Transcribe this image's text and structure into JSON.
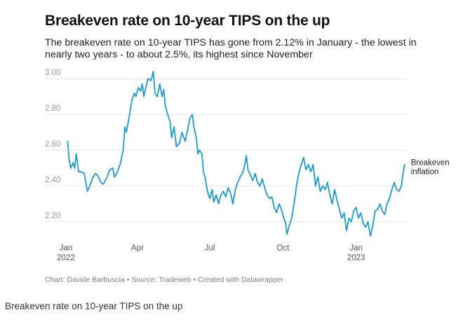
{
  "title": "Breakeven rate on 10-year TIPS on the up",
  "subtitle": "The breakeven rate on 10-year TIPS has gone from 2.12% in January - the lowest in nearly two years - to about 2.5%, its highest since November",
  "footer": "Chart: Davide Barbuscia • Source: Tradeweb • Created with Datawrapper",
  "caption": "Breakeven rate on 10-year TIPS on the up",
  "chart_data": {
    "type": "line",
    "title": "Breakeven rate on 10-year TIPS on the up",
    "ylim": [
      2.13,
      3.04
    ],
    "yticks": [
      "2.20",
      "2.40",
      "2.60",
      "2.80",
      "3.00"
    ],
    "xlim": [
      "2022-01-01",
      "2023-03-05"
    ],
    "xticks": [
      {
        "date": "2022-01-01",
        "label": "Jan",
        "sub": "2022"
      },
      {
        "date": "2022-04-01",
        "label": "Apr",
        "sub": ""
      },
      {
        "date": "2022-07-01",
        "label": "Jul",
        "sub": ""
      },
      {
        "date": "2022-10-01",
        "label": "Oct",
        "sub": ""
      },
      {
        "date": "2023-01-01",
        "label": "Jan",
        "sub": "2023"
      }
    ],
    "grid": true,
    "color": "#1f9bc9",
    "series": [
      {
        "name": "Breakeven inflation",
        "points": [
          [
            "2022-01-03",
            2.65
          ],
          [
            "2022-01-05",
            2.55
          ],
          [
            "2022-01-07",
            2.5
          ],
          [
            "2022-01-10",
            2.53
          ],
          [
            "2022-01-12",
            2.5
          ],
          [
            "2022-01-14",
            2.58
          ],
          [
            "2022-01-17",
            2.48
          ],
          [
            "2022-01-20",
            2.48
          ],
          [
            "2022-01-24",
            2.47
          ],
          [
            "2022-01-26",
            2.42
          ],
          [
            "2022-01-28",
            2.37
          ],
          [
            "2022-01-31",
            2.4
          ],
          [
            "2022-02-03",
            2.44
          ],
          [
            "2022-02-07",
            2.47
          ],
          [
            "2022-02-10",
            2.46
          ],
          [
            "2022-02-14",
            2.42
          ],
          [
            "2022-02-17",
            2.41
          ],
          [
            "2022-02-22",
            2.45
          ],
          [
            "2022-02-25",
            2.49
          ],
          [
            "2022-03-01",
            2.5
          ],
          [
            "2022-03-03",
            2.45
          ],
          [
            "2022-03-06",
            2.47
          ],
          [
            "2022-03-10",
            2.52
          ],
          [
            "2022-03-14",
            2.6
          ],
          [
            "2022-03-16",
            2.73
          ],
          [
            "2022-03-18",
            2.7
          ],
          [
            "2022-03-22",
            2.8
          ],
          [
            "2022-03-25",
            2.88
          ],
          [
            "2022-03-28",
            2.92
          ],
          [
            "2022-03-30",
            2.9
          ],
          [
            "2022-04-02",
            2.95
          ],
          [
            "2022-04-05",
            2.93
          ],
          [
            "2022-04-07",
            2.97
          ],
          [
            "2022-04-09",
            2.9
          ],
          [
            "2022-04-12",
            2.96
          ],
          [
            "2022-04-14",
            3.0
          ],
          [
            "2022-04-18",
            2.99
          ],
          [
            "2022-04-21",
            3.04
          ],
          [
            "2022-04-23",
            2.92
          ],
          [
            "2022-04-26",
            2.9
          ],
          [
            "2022-04-29",
            2.97
          ],
          [
            "2022-05-02",
            2.9
          ],
          [
            "2022-05-04",
            2.94
          ],
          [
            "2022-05-06",
            2.85
          ],
          [
            "2022-05-09",
            2.8
          ],
          [
            "2022-05-12",
            2.76
          ],
          [
            "2022-05-14",
            2.67
          ],
          [
            "2022-05-17",
            2.73
          ],
          [
            "2022-05-20",
            2.62
          ],
          [
            "2022-05-24",
            2.64
          ],
          [
            "2022-05-27",
            2.7
          ],
          [
            "2022-05-31",
            2.65
          ],
          [
            "2022-06-03",
            2.71
          ],
          [
            "2022-06-06",
            2.78
          ],
          [
            "2022-06-09",
            2.8
          ],
          [
            "2022-06-11",
            2.73
          ],
          [
            "2022-06-14",
            2.67
          ],
          [
            "2022-06-16",
            2.58
          ],
          [
            "2022-06-18",
            2.6
          ],
          [
            "2022-06-21",
            2.58
          ],
          [
            "2022-06-23",
            2.48
          ],
          [
            "2022-06-25",
            2.45
          ],
          [
            "2022-06-28",
            2.37
          ],
          [
            "2022-07-01",
            2.33
          ],
          [
            "2022-07-04",
            2.38
          ],
          [
            "2022-07-06",
            2.31
          ],
          [
            "2022-07-09",
            2.35
          ],
          [
            "2022-07-12",
            2.3
          ],
          [
            "2022-07-15",
            2.35
          ],
          [
            "2022-07-18",
            2.37
          ],
          [
            "2022-07-21",
            2.34
          ],
          [
            "2022-07-24",
            2.39
          ],
          [
            "2022-07-27",
            2.36
          ],
          [
            "2022-07-30",
            2.3
          ],
          [
            "2022-08-02",
            2.38
          ],
          [
            "2022-08-05",
            2.42
          ],
          [
            "2022-08-08",
            2.45
          ],
          [
            "2022-08-11",
            2.47
          ],
          [
            "2022-08-14",
            2.52
          ],
          [
            "2022-08-16",
            2.57
          ],
          [
            "2022-08-18",
            2.49
          ],
          [
            "2022-08-21",
            2.46
          ],
          [
            "2022-08-24",
            2.43
          ],
          [
            "2022-08-27",
            2.47
          ],
          [
            "2022-08-30",
            2.42
          ],
          [
            "2022-09-02",
            2.4
          ],
          [
            "2022-09-05",
            2.44
          ],
          [
            "2022-09-08",
            2.39
          ],
          [
            "2022-09-11",
            2.35
          ],
          [
            "2022-09-14",
            2.33
          ],
          [
            "2022-09-17",
            2.34
          ],
          [
            "2022-09-20",
            2.28
          ],
          [
            "2022-09-23",
            2.25
          ],
          [
            "2022-09-26",
            2.3
          ],
          [
            "2022-09-29",
            2.27
          ],
          [
            "2022-10-02",
            2.22
          ],
          [
            "2022-10-04",
            2.2
          ],
          [
            "2022-10-06",
            2.13
          ],
          [
            "2022-10-09",
            2.18
          ],
          [
            "2022-10-12",
            2.22
          ],
          [
            "2022-10-15",
            2.3
          ],
          [
            "2022-10-18",
            2.4
          ],
          [
            "2022-10-21",
            2.47
          ],
          [
            "2022-10-24",
            2.52
          ],
          [
            "2022-10-27",
            2.56
          ],
          [
            "2022-10-30",
            2.49
          ],
          [
            "2022-11-02",
            2.52
          ],
          [
            "2022-11-05",
            2.48
          ],
          [
            "2022-11-08",
            2.52
          ],
          [
            "2022-11-11",
            2.4
          ],
          [
            "2022-11-14",
            2.45
          ],
          [
            "2022-11-17",
            2.37
          ],
          [
            "2022-11-20",
            2.4
          ],
          [
            "2022-11-23",
            2.38
          ],
          [
            "2022-11-26",
            2.42
          ],
          [
            "2022-11-29",
            2.35
          ],
          [
            "2022-12-02",
            2.3
          ],
          [
            "2022-12-05",
            2.38
          ],
          [
            "2022-12-08",
            2.32
          ],
          [
            "2022-12-11",
            2.27
          ],
          [
            "2022-12-14",
            2.22
          ],
          [
            "2022-12-17",
            2.25
          ],
          [
            "2022-12-20",
            2.15
          ],
          [
            "2022-12-23",
            2.22
          ],
          [
            "2022-12-26",
            2.2
          ],
          [
            "2022-12-29",
            2.26
          ],
          [
            "2023-01-01",
            2.28
          ],
          [
            "2023-01-04",
            2.22
          ],
          [
            "2023-01-07",
            2.25
          ],
          [
            "2023-01-10",
            2.19
          ],
          [
            "2023-01-13",
            2.17
          ],
          [
            "2023-01-16",
            2.2
          ],
          [
            "2023-01-19",
            2.12
          ],
          [
            "2023-01-22",
            2.18
          ],
          [
            "2023-01-25",
            2.26
          ],
          [
            "2023-01-28",
            2.27
          ],
          [
            "2023-01-31",
            2.3
          ],
          [
            "2023-02-03",
            2.26
          ],
          [
            "2023-02-06",
            2.24
          ],
          [
            "2023-02-09",
            2.3
          ],
          [
            "2023-02-12",
            2.33
          ],
          [
            "2023-02-15",
            2.38
          ],
          [
            "2023-02-18",
            2.42
          ],
          [
            "2023-02-21",
            2.38
          ],
          [
            "2023-02-24",
            2.37
          ],
          [
            "2023-02-27",
            2.4
          ],
          [
            "2023-03-01",
            2.47
          ],
          [
            "2023-03-03",
            2.52
          ]
        ]
      }
    ]
  }
}
